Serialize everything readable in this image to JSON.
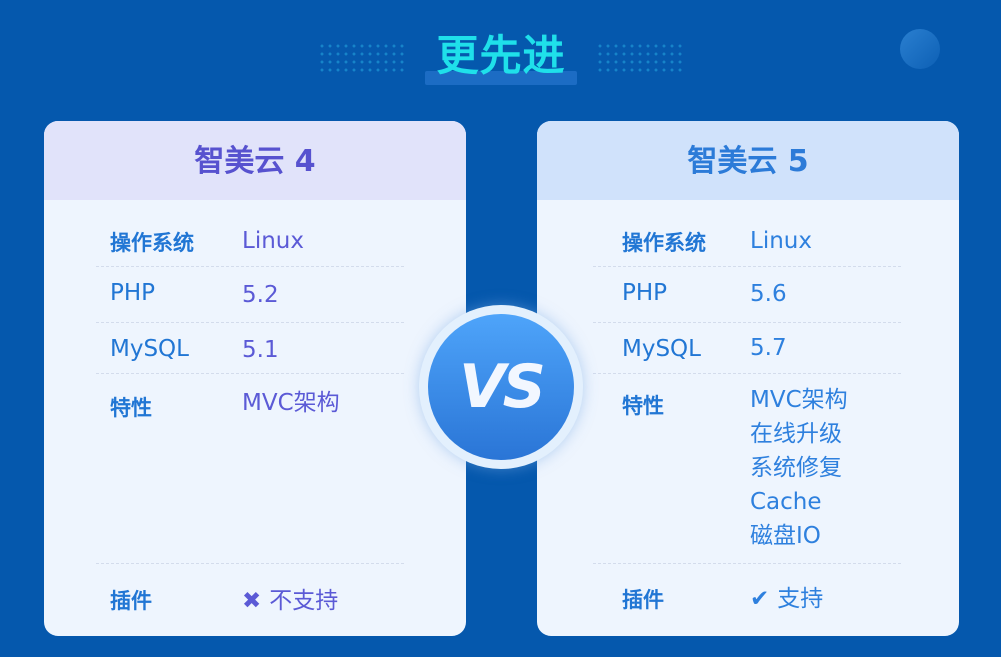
{
  "heading": "更先进",
  "vs": "VS",
  "colors": {
    "background": "#0558ad",
    "heading": "#1fe0ea",
    "unsupported": "#f25a6e",
    "supported": "#2ec79d"
  },
  "cards": [
    {
      "title": "智美云 4",
      "os_label": "操作系统",
      "os": "Linux",
      "php_label": "PHP",
      "php": "5.2",
      "mysql_label": "MySQL",
      "mysql": "5.1",
      "features_label": "特性",
      "features": [
        "MVC架构"
      ],
      "plugin_label": "插件",
      "plugin_icon": "cross-icon",
      "plugin": "不支持"
    },
    {
      "title": "智美云 5",
      "os_label": "操作系统",
      "os": "Linux",
      "php_label": "PHP",
      "php": "5.6",
      "mysql_label": "MySQL",
      "mysql": "5.7",
      "features_label": "特性",
      "features": [
        "MVC架构",
        "在线升级",
        "系统修复",
        "Cache",
        "磁盘IO"
      ],
      "plugin_label": "插件",
      "plugin_icon": "check-icon",
      "plugin": "支持"
    }
  ]
}
